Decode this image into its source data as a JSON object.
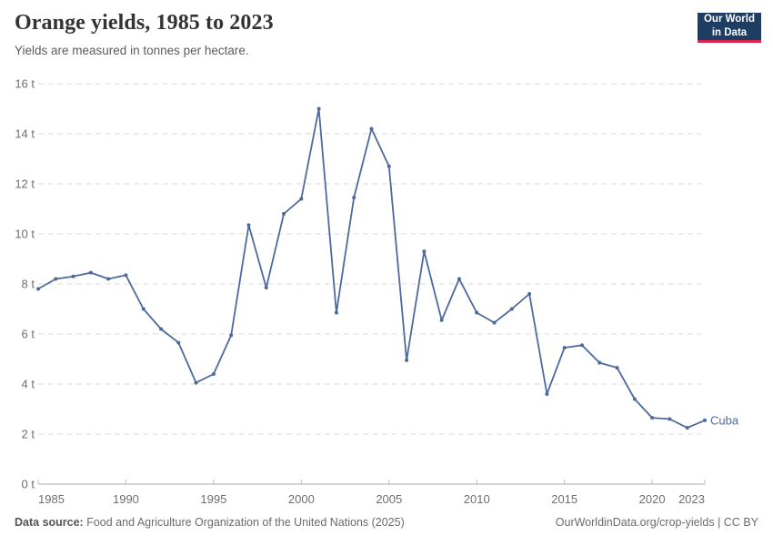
{
  "header": {
    "title": "Orange yields, 1985 to 2023",
    "subtitle": "Yields are measured in tonnes per hectare.",
    "logo": {
      "line1": "Our World",
      "line2": "in Data",
      "bg_color": "#1d3d63",
      "accent_color": "#e0234e"
    }
  },
  "chart_data": {
    "type": "line",
    "title": "Orange yields, 1985 to 2023",
    "ylabel": "tonnes per hectare",
    "xlabel": "",
    "grid": true,
    "legend_position": "end-of-line",
    "xlim": [
      1985,
      2023
    ],
    "ylim": [
      0,
      16
    ],
    "x": [
      1985,
      1986,
      1987,
      1988,
      1989,
      1990,
      1991,
      1992,
      1993,
      1994,
      1995,
      1996,
      1997,
      1998,
      1999,
      2000,
      2001,
      2002,
      2003,
      2004,
      2005,
      2006,
      2007,
      2008,
      2009,
      2010,
      2011,
      2012,
      2013,
      2014,
      2015,
      2016,
      2017,
      2018,
      2019,
      2020,
      2021,
      2022,
      2023
    ],
    "series": [
      {
        "name": "Cuba",
        "color": "#4c6a9c",
        "values": [
          7.8,
          8.2,
          8.3,
          8.45,
          8.2,
          8.35,
          7.0,
          6.2,
          5.65,
          4.05,
          4.4,
          5.95,
          10.35,
          7.85,
          10.8,
          11.4,
          15.0,
          6.85,
          11.45,
          14.2,
          12.7,
          4.95,
          9.3,
          6.55,
          8.2,
          6.85,
          6.45,
          7.0,
          7.6,
          3.6,
          5.45,
          5.55,
          4.85,
          4.65,
          3.4,
          2.65,
          2.6,
          2.25,
          2.55
        ]
      }
    ],
    "xticks": [
      1985,
      1990,
      1995,
      2000,
      2005,
      2010,
      2015,
      2020,
      2023
    ],
    "yticks": [
      0,
      2,
      4,
      6,
      8,
      10,
      12,
      14,
      16
    ],
    "ytick_labels": [
      "0 t",
      "2 t",
      "4 t",
      "6 t",
      "8 t",
      "10 t",
      "12 t",
      "14 t",
      "16 t"
    ],
    "gridline_color": "#dadada",
    "axis_color": "#a8a8a8",
    "tick_label_color": "#6e6e6e"
  },
  "footer": {
    "source_label": "Data source:",
    "source_text": "Food and Agriculture Organization of the United Nations (2025)",
    "credit": "OurWorldinData.org/crop-yields | CC BY"
  }
}
